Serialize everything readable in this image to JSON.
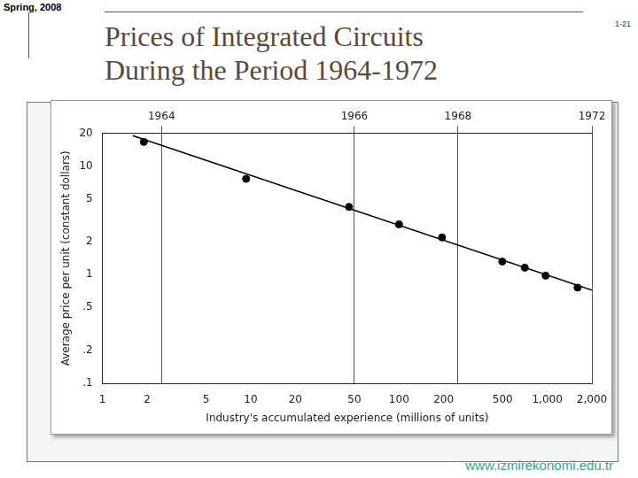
{
  "slide": {
    "header": "Spring, 2008",
    "page": "1-21",
    "footer": "www.izmirekonomi.edu.tr"
  },
  "chart_data": {
    "type": "scatter",
    "title": [
      "Prices of Integrated Circuits",
      "During the Period 1964-1972"
    ],
    "x_label": "Industry's accumulated experience (millions of units)",
    "y_label": "Average price per unit (constant dollars)",
    "log": true,
    "grid": true,
    "xlim": [
      1,
      2000
    ],
    "ylim": [
      0.1,
      20
    ],
    "xticks": [
      1,
      2,
      5,
      10,
      20,
      50,
      100,
      200,
      500,
      {
        "value": 1000,
        "label": "1,000"
      },
      {
        "value": 2000,
        "label": "2,000"
      }
    ],
    "x2ticks": [
      {
        "value": 2.5,
        "label": "1964"
      },
      {
        "value": 50,
        "label": "1966"
      },
      {
        "value": 250,
        "label": "1968"
      },
      {
        "value": 2000,
        "label": "1972"
      }
    ],
    "yticks": [
      {
        "value": 0.1,
        "label": ".1"
      },
      {
        "value": 0.2,
        "label": ".2"
      },
      {
        "value": 0.5,
        "label": ".5"
      },
      1,
      2,
      5,
      10,
      20
    ],
    "series": [
      {
        "type": "scatter",
        "marker": "circle",
        "color": "#000000",
        "x": [
          1.9,
          9.3,
          46,
          100,
          195,
          497,
          705,
          975,
          1600
        ],
        "values": [
          16.6,
          7.6,
          4.2,
          2.9,
          2.2,
          1.32,
          1.16,
          0.98,
          0.76
        ]
      },
      {
        "type": "line",
        "line_style": "solid",
        "color": "#000000",
        "x": [
          1.6,
          2000
        ],
        "values": [
          19,
          0.72
        ]
      }
    ]
  }
}
